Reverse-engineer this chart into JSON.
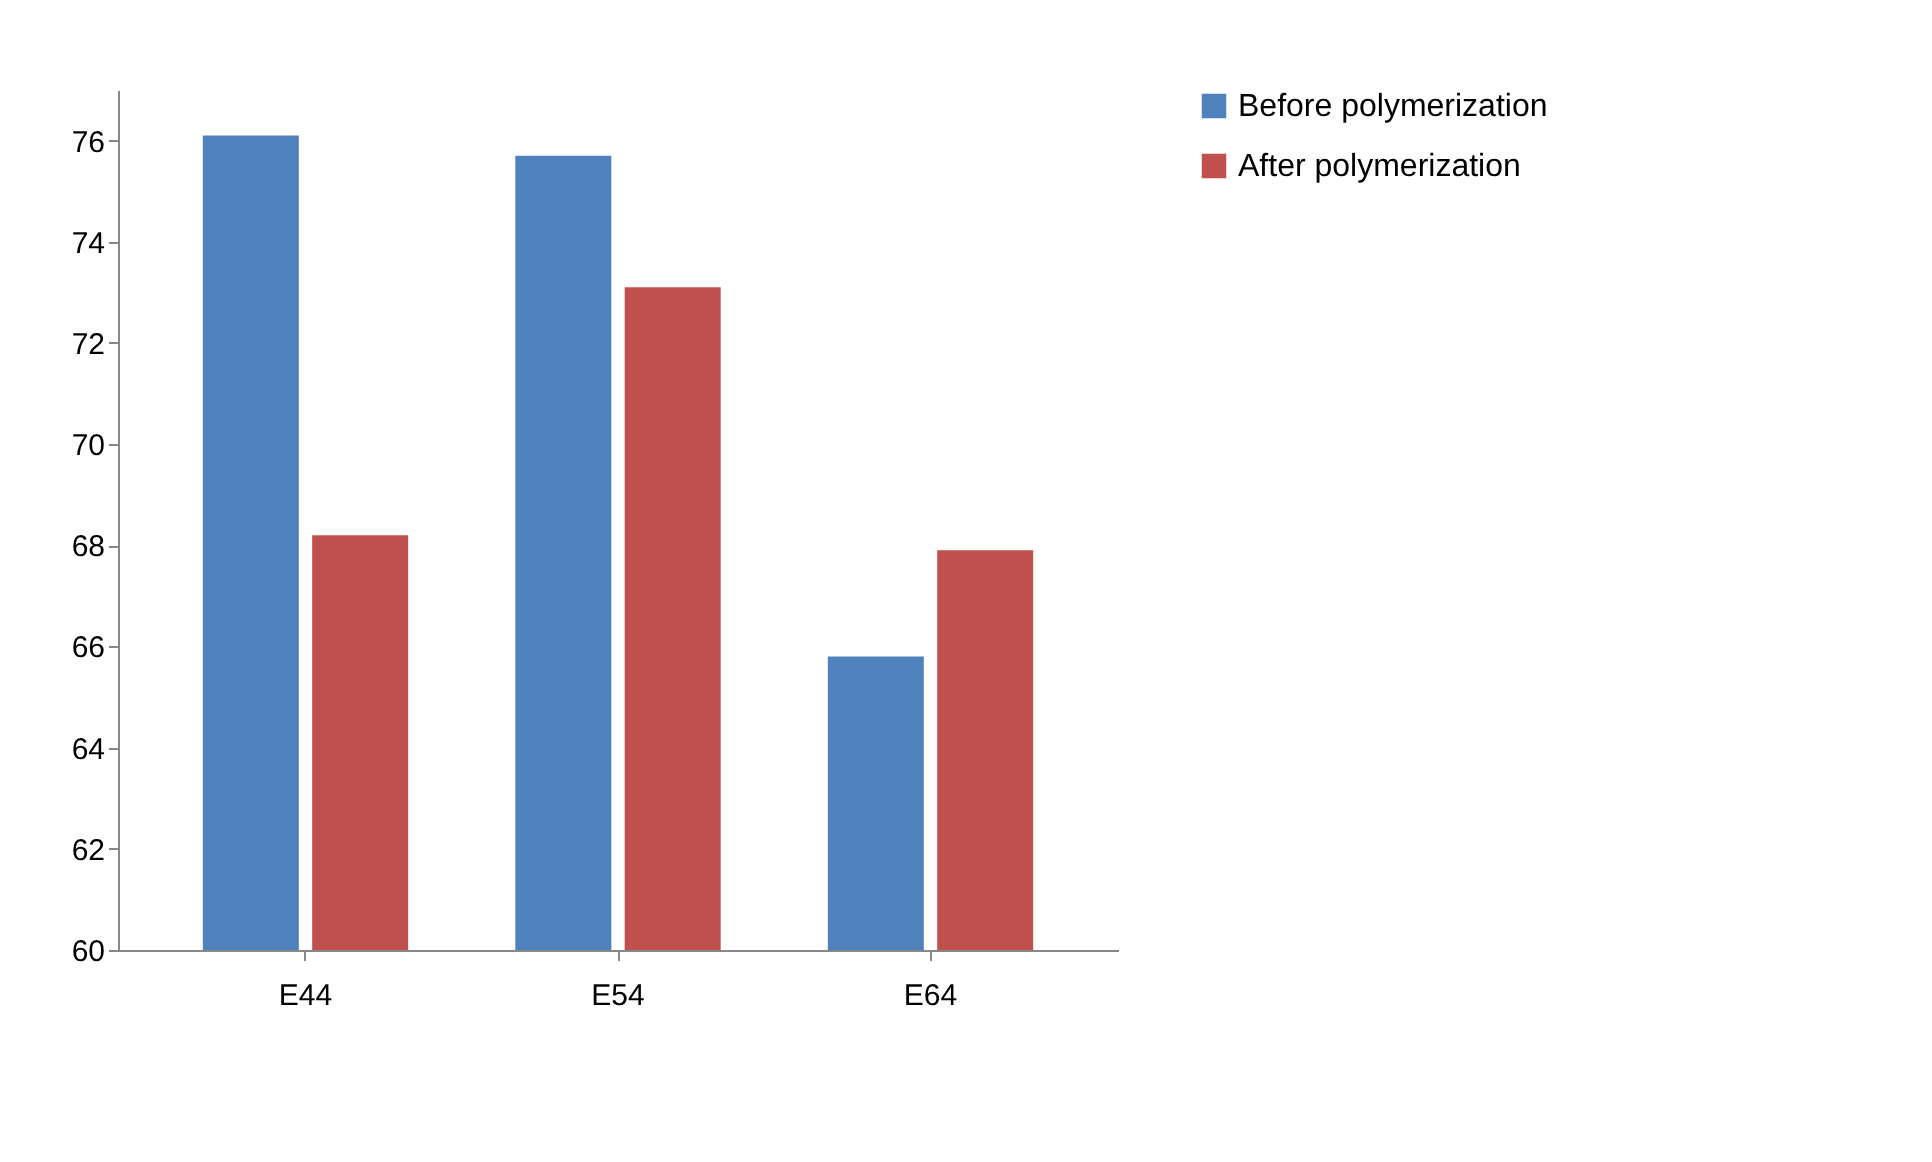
{
  "chart_data": {
    "type": "bar",
    "categories": [
      "E44",
      "E54",
      "E64"
    ],
    "series": [
      {
        "name": "Before polymerization",
        "color": "#4f81bd",
        "values": [
          76.1,
          75.7,
          65.8
        ]
      },
      {
        "name": "After polymerization",
        "color": "#c0504d",
        "values": [
          68.2,
          73.1,
          67.9
        ]
      }
    ],
    "ylim": [
      60,
      77
    ],
    "yticks": [
      60,
      62,
      64,
      66,
      68,
      70,
      72,
      74,
      76
    ],
    "grid": false,
    "legend": "right"
  }
}
